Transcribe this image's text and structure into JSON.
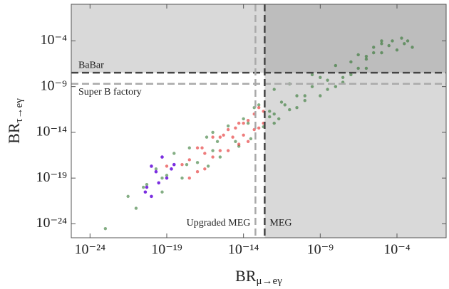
{
  "chart_data": {
    "type": "scatter",
    "x_label": {
      "text": "BR",
      "subscript": "μ→eγ"
    },
    "y_label": {
      "text": "BR",
      "subscript": "τ→eγ"
    },
    "log_x": true,
    "log_y": true,
    "xlim": [
      6e-26,
      0.16
    ],
    "ylim": [
      3e-26,
      1
    ],
    "xticks": [
      {
        "value": 1e-24,
        "label": "10⁻²⁴"
      },
      {
        "value": 1e-19,
        "label": "10⁻¹⁹"
      },
      {
        "value": 1e-14,
        "label": "10⁻¹⁴"
      },
      {
        "value": 1e-09,
        "label": "10⁻⁹"
      },
      {
        "value": 0.0001,
        "label": "10⁻⁴"
      }
    ],
    "yticks": [
      {
        "value": 1e-24,
        "label": "10⁻²⁴"
      },
      {
        "value": 1e-19,
        "label": "10⁻¹⁹"
      },
      {
        "value": 1e-14,
        "label": "10⁻¹⁴"
      },
      {
        "value": 1e-09,
        "label": "10⁻⁹"
      },
      {
        "value": 0.0001,
        "label": "10⁻⁴"
      }
    ],
    "limits": [
      {
        "label": "BaBar",
        "axis": "y",
        "value": 3.3e-08,
        "color": "#444"
      },
      {
        "label": "Super B factory",
        "axis": "y",
        "value": 2e-09,
        "color": "#aaa"
      },
      {
        "label": "MEG",
        "axis": "x",
        "value": 2.4e-13,
        "color": "#444"
      },
      {
        "label": "Upgraded MEG",
        "axis": "x",
        "value": 6e-14,
        "color": "#aaa"
      }
    ],
    "series": [
      {
        "color": "#1f6b1f",
        "x": [
          1e-23,
          3e-22,
          1e-21,
          5e-21,
          2e-20,
          5e-20,
          1e-19,
          3e-19,
          1e-18,
          3e-18,
          1e-17,
          4e-17,
          1e-16,
          3e-16,
          1e-15,
          3e-15,
          1e-14,
          3e-14,
          1e-13,
          2e-13,
          5e-13,
          1e-12,
          2e-12,
          5e-12,
          1e-11,
          3e-11,
          1e-10,
          3e-10,
          1e-09,
          3e-09,
          1e-08,
          3e-08,
          1e-07,
          3e-07,
          1e-06,
          3e-06,
          1e-05,
          3e-05,
          0.0001,
          0.0003,
          0.001,
          0.0005,
          0.0002,
          5e-05,
          1e-05,
          3e-06,
          1e-06,
          3e-07,
          1e-07,
          3e-08,
          1e-08,
          3e-09,
          1e-09,
          3e-10,
          1e-10,
          3e-11,
          1e-11,
          3e-12,
          1e-12,
          5e-13,
          2e-14,
          5e-15,
          2e-16,
          5e-17,
          2e-18,
          5e-20,
          3e-21,
          1e-16,
          5e-14,
          1e-12,
          1e-06,
          1e-05
        ],
        "y": [
          3e-25,
          1e-21,
          5e-23,
          2e-20,
          1e-18,
          3e-21,
          2e-19,
          5e-17,
          1e-19,
          2e-16,
          5e-18,
          3e-15,
          1e-16,
          2e-17,
          5e-14,
          1e-15,
          3e-13,
          2e-15,
          1e-11,
          4e-14,
          2e-12,
          5e-10,
          3e-13,
          1e-11,
          2e-09,
          5e-12,
          1e-10,
          2e-08,
          1e-10,
          5e-09,
          2e-07,
          1e-08,
          5e-07,
          3e-06,
          1e-07,
          2e-05,
          5e-06,
          3e-05,
          1e-05,
          5e-05,
          2e-05,
          0.0001,
          0.0002,
          0.0001,
          5e-05,
          5e-06,
          2e-06,
          1e-07,
          2e-08,
          3e-09,
          1e-09,
          5e-10,
          1e-08,
          1e-09,
          3e-11,
          1e-10,
          3e-12,
          2e-11,
          1e-12,
          5e-13,
          1e-13,
          3e-16,
          1e-15,
          2e-18,
          3e-18,
          1e-19,
          1e-20,
          1e-14,
          5e-12,
          1e-13,
          1e-06,
          0.0001
        ]
      },
      {
        "color": "#e01010",
        "x": [
          1e-18,
          3e-18,
          1e-17,
          3e-17,
          1e-16,
          3e-16,
          1e-15,
          2e-15,
          5e-15,
          1e-14,
          2e-14,
          5e-14,
          1e-13,
          2e-13,
          1e-13,
          5e-14,
          2e-14,
          5e-15,
          1e-15,
          3e-16,
          1e-16,
          3e-17,
          1e-17,
          3e-18,
          2e-13,
          1e-14,
          3e-15,
          5e-16,
          2e-17,
          1e-19
        ],
        "y": [
          3e-18,
          1e-17,
          2e-16,
          5e-17,
          3e-15,
          1e-16,
          2e-14,
          3e-15,
          1e-13,
          5e-15,
          2e-13,
          1e-12,
          3e-14,
          1e-13,
          5e-12,
          2e-14,
          1e-15,
          5e-16,
          1e-16,
          3e-15,
          2e-17,
          1e-18,
          5e-19,
          1e-19,
          2e-12,
          1e-13,
          3e-14,
          5e-15,
          2e-16,
          2e-18
        ]
      },
      {
        "color": "#7b2fe0",
        "x": [
          1e-20,
          2e-20,
          5e-21,
          3e-20,
          1e-19,
          2e-19,
          5e-20,
          3e-19,
          1e-20,
          4e-21
        ],
        "y": [
          2e-18,
          5e-19,
          1e-20,
          3e-20,
          1e-19,
          1e-18,
          2e-17,
          3e-18,
          1e-21,
          3e-21
        ]
      }
    ]
  }
}
